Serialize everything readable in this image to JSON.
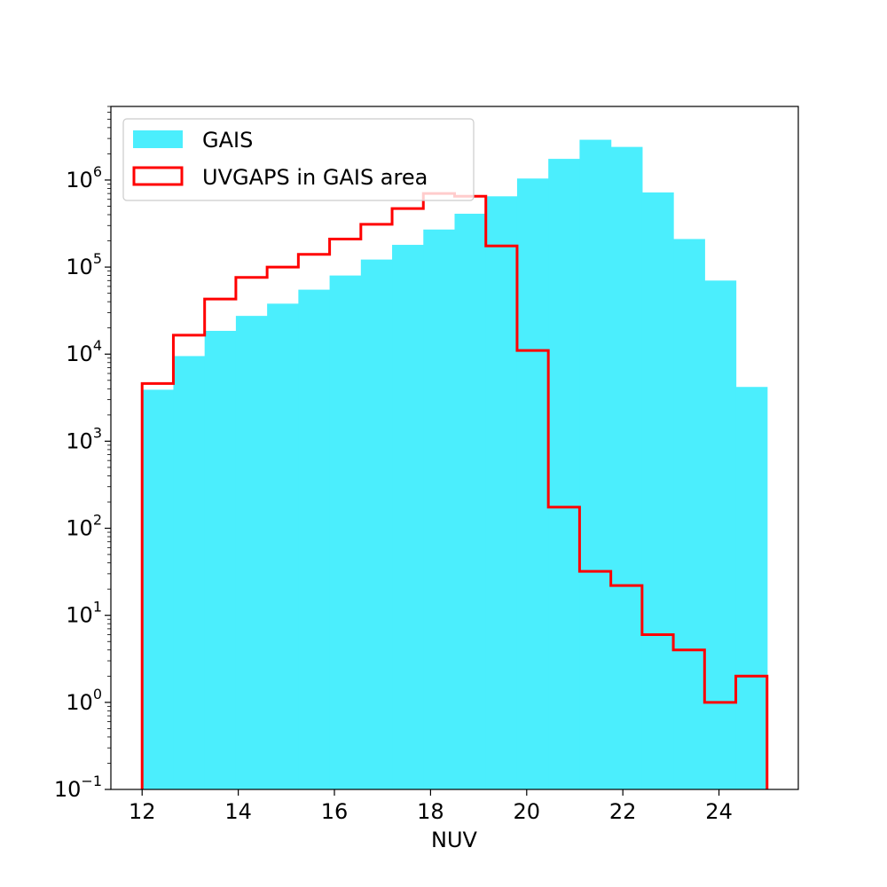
{
  "chart_data": {
    "type": "histogram",
    "xlabel": "NUV",
    "ylabel": "",
    "yscale": "log",
    "xlim": [
      11.35,
      25.65
    ],
    "ylim": [
      0.1,
      7000000
    ],
    "bin_edges": [
      12.0,
      12.65,
      13.3,
      13.95,
      14.6,
      15.25,
      15.9,
      16.55,
      17.2,
      17.85,
      18.5,
      19.15,
      19.8,
      20.45,
      21.1,
      21.75,
      22.4,
      23.05,
      23.7,
      24.35,
      25.0
    ],
    "x_ticks": [
      12,
      14,
      16,
      18,
      20,
      22,
      24
    ],
    "y_ticks": [
      {
        "value": 0.1,
        "base": "10",
        "exp": "−1"
      },
      {
        "value": 1,
        "base": "10",
        "exp": "0"
      },
      {
        "value": 10,
        "base": "10",
        "exp": "1"
      },
      {
        "value": 100,
        "base": "10",
        "exp": "2"
      },
      {
        "value": 1000,
        "base": "10",
        "exp": "3"
      },
      {
        "value": 10000,
        "base": "10",
        "exp": "4"
      },
      {
        "value": 100000,
        "base": "10",
        "exp": "5"
      },
      {
        "value": 1000000,
        "base": "10",
        "exp": "6"
      }
    ],
    "grid": false,
    "legend_position": "upper-left",
    "series": [
      {
        "name": "GAIS",
        "style": "filled",
        "color": "#4beefd",
        "values": [
          3900,
          9500,
          18500,
          27500,
          38000,
          55000,
          80000,
          122000,
          180000,
          270000,
          410000,
          650000,
          1040000,
          1750000,
          2900000,
          2400000,
          720000,
          210000,
          70000,
          4200
        ]
      },
      {
        "name": "UVGAPS in GAIS area",
        "style": "step",
        "color": "#ff0000",
        "values": [
          4600,
          16500,
          43000,
          76000,
          100000,
          140000,
          210000,
          310000,
          470000,
          700000,
          650000,
          175000,
          11000,
          175,
          32,
          22,
          6,
          4,
          1,
          2
        ]
      }
    ]
  }
}
